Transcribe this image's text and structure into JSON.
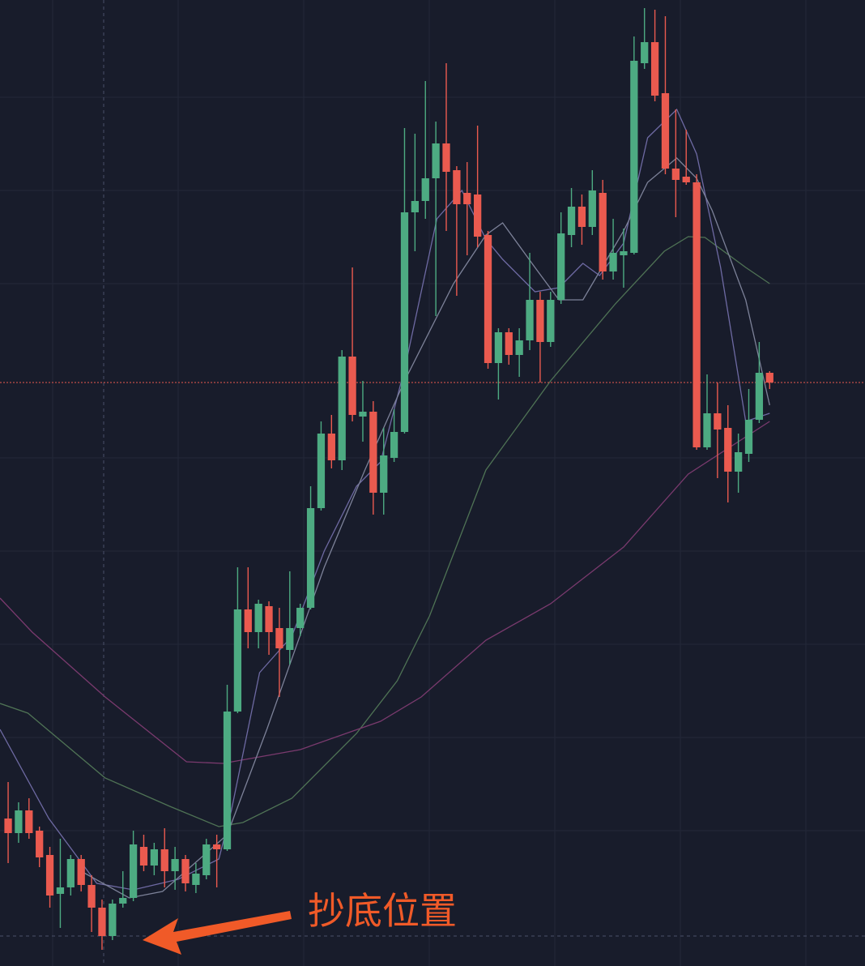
{
  "chart_data": {
    "type": "candlestick",
    "up_color": "#4dab82",
    "down_color": "#ea5a4f",
    "candles": {
      "open": [
        182,
        164,
        192,
        167,
        137,
        89,
        97,
        132,
        100,
        72,
        37,
        77,
        84,
        147,
        124,
        144,
        117,
        132,
        100,
        112,
        150,
        144,
        314,
        440,
        412,
        444,
        417,
        390,
        417,
        442,
        565,
        657,
        624,
        752,
        678,
        684,
        584,
        627,
        659,
        930,
        944,
        972,
        1015,
        982,
        954,
        952,
        902,
        744,
        782,
        754,
        772,
        822,
        770,
        822,
        902,
        937,
        912,
        954,
        857,
        877,
        880,
        1114,
        1140,
        1077,
        984,
        974,
        967,
        640,
        682,
        664,
        610,
        632,
        674,
        732
      ],
      "high": [
        227,
        202,
        207,
        172,
        147,
        157,
        137,
        137,
        112,
        82,
        82,
        117,
        167,
        162,
        152,
        170,
        147,
        137,
        127,
        157,
        162,
        347,
        492,
        492,
        452,
        450,
        442,
        487,
        447,
        592,
        672,
        680,
        760,
        862,
        722,
        697,
        664,
        687,
        1034,
        1027,
        1092,
        1042,
        1114,
        987,
        992,
        1037,
        907,
        787,
        787,
        787,
        880,
        832,
        832,
        930,
        960,
        952,
        982,
        970,
        922,
        910,
        1147,
        1182,
        1180,
        1172,
        1057,
        1032,
        977,
        730,
        720,
        692,
        657,
        712,
        770,
        734
      ],
      "low": [
        127,
        152,
        157,
        122,
        72,
        47,
        87,
        92,
        42,
        20,
        32,
        72,
        80,
        117,
        112,
        97,
        94,
        92,
        90,
        107,
        97,
        142,
        312,
        392,
        392,
        384,
        332,
        372,
        407,
        440,
        562,
        614,
        612,
        672,
        647,
        557,
        557,
        622,
        657,
        882,
        922,
        802,
        907,
        827,
        877,
        887,
        737,
        699,
        742,
        727,
        760,
        720,
        764,
        817,
        887,
        890,
        902,
        847,
        847,
        837,
        878,
        1107,
        1067,
        977,
        924,
        964,
        637,
        637,
        602,
        572,
        584,
        622,
        670,
        712
      ],
      "close": [
        164,
        192,
        164,
        134,
        87,
        97,
        132,
        100,
        72,
        37,
        77,
        84,
        150,
        124,
        144,
        117,
        132,
        102,
        114,
        150,
        144,
        314,
        440,
        412,
        447,
        412,
        392,
        417,
        442,
        565,
        657,
        624,
        752,
        680,
        684,
        584,
        630,
        659,
        930,
        944,
        972,
        1015,
        980,
        940,
        940,
        900,
        744,
        782,
        754,
        772,
        822,
        770,
        822,
        904,
        937,
        912,
        957,
        857,
        880,
        882,
        1117,
        1140,
        1074,
        984,
        970,
        967,
        640,
        682,
        662,
        610,
        634,
        674,
        732,
        720
      ]
    },
    "lines": [
      {
        "color": "#4f7355",
        "x": [
          -0.78,
          1.9,
          9.3,
          15.5,
          20.2,
          22.5,
          27.2,
          33.4,
          37.3,
          40.4,
          45.8,
          52.0,
          58.2,
          62.9,
          65.2,
          66.8,
          70.7,
          73
        ],
        "values": [
          324,
          312,
          232,
          197,
          172,
          177,
          207,
          287,
          352,
          432,
          612,
          722,
          817,
          882,
          900,
          899,
          862,
          842
        ]
      },
      {
        "color": "#7a3a6e",
        "x": [
          -0.78,
          2.3,
          9.3,
          17.1,
          20.6,
          28.0,
          35.7,
          39.6,
          45.8,
          52.0,
          59.0,
          65.2,
          73
        ],
        "values": [
          454,
          412,
          332,
          252,
          250,
          267,
          302,
          332,
          402,
          447,
          517,
          607,
          672
        ]
      },
      {
        "color": "#6e6aa3",
        "x": [
          -0.78,
          3.9,
          8.5,
          12.0,
          16.3,
          20.2,
          21.4,
          24.1,
          27.2,
          30.3,
          33.4,
          35.7,
          38.1,
          41.1,
          43.5,
          45.8,
          47.4,
          50.5,
          52.8,
          55.1,
          56.7,
          59.0,
          61.3,
          64.1,
          66.0,
          68.3,
          70.7,
          73
        ],
        "values": [
          292,
          182,
          102,
          94,
          107,
          132,
          192,
          362,
          407,
          512,
          592,
          622,
          742,
          922,
          957,
          897,
          872,
          832,
          837,
          867,
          852,
          892,
          1022,
          1057,
          1002,
          862,
          672,
          682
        ]
      },
      {
        "color": "#7d8299",
        "x": [
          7.0,
          11.6,
          14.8,
          21.0,
          24.8,
          30.3,
          34.2,
          38.0,
          42.7,
          45.8,
          47.4,
          50.5,
          52.8,
          55.1,
          59.0,
          61.3,
          64.1,
          66.0,
          67.5,
          70.7,
          73
        ],
        "values": [
          117,
          84,
          92,
          162,
          292,
          492,
          612,
          722,
          842,
          902,
          917,
          862,
          822,
          822,
          907,
          967,
          997,
          972,
          932,
          822,
          692
        ]
      }
    ],
    "xlim": [
      -0.78,
      82.14
    ],
    "ylim": [
      0,
      1192
    ],
    "annotation": "抄底位置",
    "annotation_color": "#f05a28"
  }
}
